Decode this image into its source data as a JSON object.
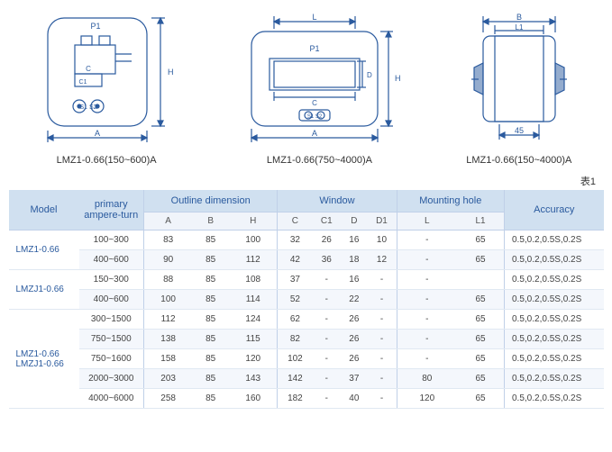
{
  "diagrams": [
    {
      "label": "LMZ1-0.66(150~600)A",
      "dims": {
        "A": "A",
        "H": "H",
        "C": "C",
        "C1": "C1",
        "P1": "P1",
        "S1": "S1",
        "S2": "S2"
      }
    },
    {
      "label": "LMZ1-0.66(750~4000)A",
      "dims": {
        "A": "A",
        "H": "H",
        "L": "L",
        "C": "C",
        "D": "D",
        "P1": "P1",
        "S1": "S1",
        "S2": "S2"
      }
    },
    {
      "label": "LMZ1-0.66(150~4000)A",
      "dims": {
        "B": "B",
        "L1": "L1",
        "fixed": "45"
      }
    }
  ],
  "table_caption": "表1",
  "headers": {
    "group": [
      "Model",
      "primary ampere-turn",
      "Outline dimension",
      "Window",
      "Mounting hole",
      "Accuracy"
    ],
    "sub": [
      "A",
      "B",
      "H",
      "C",
      "C1",
      "D",
      "D1",
      "L",
      "L1"
    ]
  },
  "rows": [
    {
      "model": "LMZ1-0.66",
      "model_rowspan": 2,
      "at": "100~300",
      "A": "83",
      "B": "85",
      "H": "100",
      "C": "32",
      "C1": "26",
      "D": "16",
      "D1": "10",
      "L": "-",
      "L1": "65",
      "acc": "0.5,0.2,0.5S,0.2S"
    },
    {
      "at": "400~600",
      "A": "90",
      "B": "85",
      "H": "112",
      "C": "42",
      "C1": "36",
      "D": "18",
      "D1": "12",
      "L": "-",
      "L1": "65",
      "acc": "0.5,0.2,0.5S,0.2S"
    },
    {
      "model": "LMZJ1-0.66",
      "model_rowspan": 2,
      "at": "150~300",
      "A": "88",
      "B": "85",
      "H": "108",
      "C": "37",
      "C1": "-",
      "D": "16",
      "D1": "-",
      "L": "-",
      "L1": "",
      "acc": "0.5,0.2,0.5S,0.2S"
    },
    {
      "at": "400~600",
      "A": "100",
      "B": "85",
      "H": "114",
      "C": "52",
      "C1": "-",
      "D": "22",
      "D1": "-",
      "L": "-",
      "L1": "65",
      "acc": "0.5,0.2,0.5S,0.2S"
    },
    {
      "model": "LMZ1-0.66\nLMZJ1-0.66",
      "model_rowspan": 5,
      "at": "300~1500",
      "A": "112",
      "B": "85",
      "H": "124",
      "C": "62",
      "C1": "-",
      "D": "26",
      "D1": "-",
      "L": "-",
      "L1": "65",
      "acc": "0.5,0.2,0.5S,0.2S"
    },
    {
      "at": "750~1500",
      "A": "138",
      "B": "85",
      "H": "115",
      "C": "82",
      "C1": "-",
      "D": "26",
      "D1": "-",
      "L": "-",
      "L1": "65",
      "acc": "0.5,0.2,0.5S,0.2S"
    },
    {
      "at": "750~1600",
      "A": "158",
      "B": "85",
      "H": "120",
      "C": "102",
      "C1": "-",
      "D": "26",
      "D1": "-",
      "L": "-",
      "L1": "65",
      "acc": "0.5,0.2,0.5S,0.2S"
    },
    {
      "at": "2000~3000",
      "A": "203",
      "B": "85",
      "H": "143",
      "C": "142",
      "C1": "-",
      "D": "37",
      "D1": "-",
      "L": "80",
      "L1": "65",
      "acc": "0.5,0.2,0.5S,0.2S"
    },
    {
      "at": "4000~6000",
      "A": "258",
      "B": "85",
      "H": "160",
      "C": "182",
      "C1": "-",
      "D": "40",
      "D1": "-",
      "L": "120",
      "L1": "65",
      "acc": "0.5,0.2,0.5S,0.2S"
    }
  ],
  "colors": {
    "stroke": "#2a5a9e",
    "header_bg": "#d0e0f0",
    "header_text": "#2a5a9e"
  }
}
